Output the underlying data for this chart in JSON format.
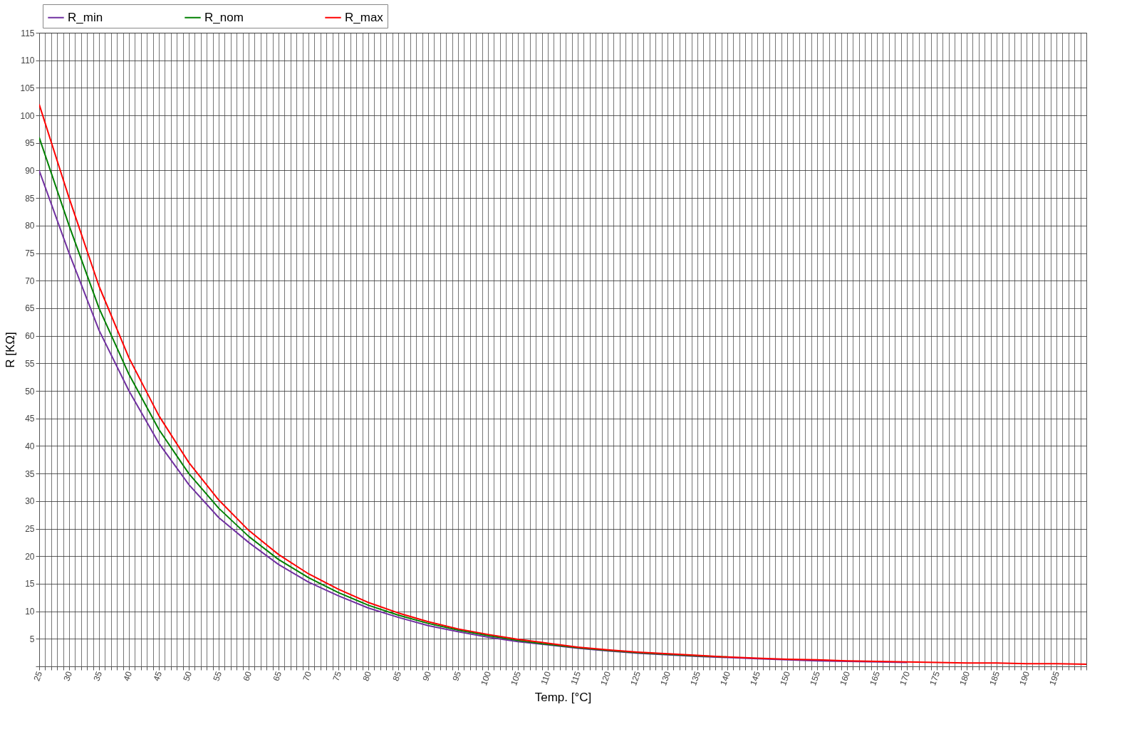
{
  "chart_data": {
    "type": "line",
    "xlabel": "Temp. [°C]",
    "ylabel": "R [KΩ]",
    "x": [
      25,
      30,
      35,
      40,
      45,
      50,
      55,
      60,
      65,
      70,
      75,
      80,
      85,
      90,
      95,
      100,
      105,
      110,
      115,
      120,
      125,
      130,
      135,
      140,
      145,
      150,
      155,
      160,
      165,
      170,
      175,
      180,
      185,
      190,
      195,
      200
    ],
    "series": [
      {
        "name": "R_min",
        "color": "#7030a0",
        "values": [
          90,
          75,
          61,
          50,
          40.5,
          33,
          27,
          22.5,
          18.5,
          15.3,
          12.8,
          10.6,
          8.9,
          7.4,
          6.3,
          5.3,
          4.5,
          3.9,
          3.3,
          2.8,
          2.4,
          2.1,
          1.8,
          1.6,
          1.4,
          1.2,
          1,
          0.9,
          0.8,
          0.7,
          null,
          null,
          null,
          null,
          null,
          null
        ]
      },
      {
        "name": "R_nom",
        "color": "#008000",
        "values": [
          96,
          80,
          65,
          53,
          43,
          35,
          28.7,
          23.6,
          19.4,
          16.1,
          13.4,
          11.1,
          9.3,
          7.8,
          6.6,
          5.6,
          4.7,
          4,
          3.4,
          2.9,
          2.5,
          2.2,
          1.9,
          1.7,
          null,
          null,
          null,
          null,
          null,
          null,
          null,
          null,
          null,
          null,
          null,
          null
        ]
      },
      {
        "name": "R_max",
        "color": "#ff0000",
        "values": [
          102,
          85,
          69,
          56,
          45.5,
          37,
          30.2,
          24.7,
          20.3,
          16.8,
          14,
          11.6,
          9.7,
          8.1,
          6.8,
          5.8,
          4.9,
          4.2,
          3.5,
          3,
          2.6,
          2.3,
          2,
          1.7,
          1.5,
          1.3,
          1.2,
          1,
          0.9,
          0.8,
          0.7,
          0.6,
          0.6,
          0.5,
          0.5,
          0.4
        ]
      }
    ],
    "xlim": [
      25,
      200
    ],
    "xticks": [
      25,
      {
        "value": 26,
        "label": null
      },
      {
        "value": 27,
        "label": null
      },
      {
        "value": 28,
        "label": null
      },
      {
        "value": 29,
        "label": null
      },
      30,
      {
        "value": 31,
        "label": null
      },
      {
        "value": 32,
        "label": null
      },
      {
        "value": 33,
        "label": null
      },
      {
        "value": 34,
        "label": null
      },
      35,
      {
        "value": 36,
        "label": null
      },
      {
        "value": 37,
        "label": null
      },
      {
        "value": 38,
        "label": null
      },
      {
        "value": 39,
        "label": null
      },
      40,
      {
        "value": 41,
        "label": null
      },
      {
        "value": 42,
        "label": null
      },
      {
        "value": 43,
        "label": null
      },
      {
        "value": 44,
        "label": null
      },
      45,
      {
        "value": 46,
        "label": null
      },
      {
        "value": 47,
        "label": null
      },
      {
        "value": 48,
        "label": null
      },
      {
        "value": 49,
        "label": null
      },
      50,
      {
        "value": 51,
        "label": null
      },
      {
        "value": 52,
        "label": null
      },
      {
        "value": 53,
        "label": null
      },
      {
        "value": 54,
        "label": null
      },
      55,
      {
        "value": 56,
        "label": null
      },
      {
        "value": 57,
        "label": null
      },
      {
        "value": 58,
        "label": null
      },
      {
        "value": 59,
        "label": null
      },
      60,
      {
        "value": 61,
        "label": null
      },
      {
        "value": 62,
        "label": null
      },
      {
        "value": 63,
        "label": null
      },
      {
        "value": 64,
        "label": null
      },
      65,
      {
        "value": 66,
        "label": null
      },
      {
        "value": 67,
        "label": null
      },
      {
        "value": 68,
        "label": null
      },
      {
        "value": 69,
        "label": null
      },
      70,
      {
        "value": 71,
        "label": null
      },
      {
        "value": 72,
        "label": null
      },
      {
        "value": 73,
        "label": null
      },
      {
        "value": 74,
        "label": null
      },
      75,
      {
        "value": 76,
        "label": null
      },
      {
        "value": 77,
        "label": null
      },
      {
        "value": 78,
        "label": null
      },
      {
        "value": 79,
        "label": null
      },
      80,
      {
        "value": 81,
        "label": null
      },
      {
        "value": 82,
        "label": null
      },
      {
        "value": 83,
        "label": null
      },
      {
        "value": 84,
        "label": null
      },
      85,
      {
        "value": 86,
        "label": null
      },
      {
        "value": 87,
        "label": null
      },
      {
        "value": 88,
        "label": null
      },
      {
        "value": 89,
        "label": null
      },
      90,
      {
        "value": 91,
        "label": null
      },
      {
        "value": 92,
        "label": null
      },
      {
        "value": 93,
        "label": null
      },
      {
        "value": 94,
        "label": null
      },
      95,
      {
        "value": 96,
        "label": null
      },
      {
        "value": 97,
        "label": null
      },
      {
        "value": 98,
        "label": null
      },
      {
        "value": 99,
        "label": null
      },
      100,
      {
        "value": 101,
        "label": null
      },
      {
        "value": 102,
        "label": null
      },
      {
        "value": 103,
        "label": null
      },
      {
        "value": 104,
        "label": null
      },
      105,
      {
        "value": 106,
        "label": null
      },
      {
        "value": 107,
        "label": null
      },
      {
        "value": 108,
        "label": null
      },
      {
        "value": 109,
        "label": null
      },
      110,
      {
        "value": 111,
        "label": null
      },
      {
        "value": 112,
        "label": null
      },
      {
        "value": 113,
        "label": null
      },
      {
        "value": 114,
        "label": null
      },
      115,
      {
        "value": 116,
        "label": null
      },
      {
        "value": 117,
        "label": null
      },
      {
        "value": 118,
        "label": null
      },
      {
        "value": 119,
        "label": null
      },
      120,
      {
        "value": 121,
        "label": null
      },
      {
        "value": 122,
        "label": null
      },
      {
        "value": 123,
        "label": null
      },
      {
        "value": 124,
        "label": null
      },
      125,
      {
        "value": 126,
        "label": null
      },
      {
        "value": 127,
        "label": null
      },
      {
        "value": 128,
        "label": null
      },
      {
        "value": 129,
        "label": null
      },
      130,
      {
        "value": 131,
        "label": null
      },
      {
        "value": 132,
        "label": null
      },
      {
        "value": 133,
        "label": null
      },
      {
        "value": 134,
        "label": null
      },
      135,
      {
        "value": 136,
        "label": null
      },
      {
        "value": 137,
        "label": null
      },
      {
        "value": 138,
        "label": null
      },
      {
        "value": 139,
        "label": null
      },
      140,
      {
        "value": 141,
        "label": null
      },
      {
        "value": 142,
        "label": null
      },
      {
        "value": 143,
        "label": null
      },
      {
        "value": 144,
        "label": null
      },
      145,
      {
        "value": 146,
        "label": null
      },
      {
        "value": 147,
        "label": null
      },
      {
        "value": 148,
        "label": null
      },
      {
        "value": 149,
        "label": null
      },
      150,
      {
        "value": 151,
        "label": null
      },
      {
        "value": 152,
        "label": null
      },
      {
        "value": 153,
        "label": null
      },
      {
        "value": 154,
        "label": null
      },
      155,
      {
        "value": 156,
        "label": null
      },
      {
        "value": 157,
        "label": null
      },
      {
        "value": 158,
        "label": null
      },
      {
        "value": 159,
        "label": null
      },
      160,
      {
        "value": 161,
        "label": null
      },
      {
        "value": 162,
        "label": null
      },
      {
        "value": 163,
        "label": null
      },
      {
        "value": 164,
        "label": null
      },
      165,
      {
        "value": 166,
        "label": null
      },
      {
        "value": 167,
        "label": null
      },
      {
        "value": 168,
        "label": null
      },
      {
        "value": 169,
        "label": null
      },
      170,
      {
        "value": 171,
        "label": null
      },
      {
        "value": 172,
        "label": null
      },
      {
        "value": 173,
        "label": null
      },
      {
        "value": 174,
        "label": null
      },
      175,
      {
        "value": 176,
        "label": null
      },
      {
        "value": 177,
        "label": null
      },
      {
        "value": 178,
        "label": null
      },
      {
        "value": 179,
        "label": null
      },
      180,
      {
        "value": 181,
        "label": null
      },
      {
        "value": 182,
        "label": null
      },
      {
        "value": 183,
        "label": null
      },
      {
        "value": 184,
        "label": null
      },
      185,
      {
        "value": 186,
        "label": null
      },
      {
        "value": 187,
        "label": null
      },
      {
        "value": 188,
        "label": null
      },
      {
        "value": 189,
        "label": null
      },
      190,
      {
        "value": 191,
        "label": null
      },
      {
        "value": 192,
        "label": null
      },
      {
        "value": 193,
        "label": null
      },
      {
        "value": 194,
        "label": null
      },
      195,
      {
        "value": 196,
        "label": null
      },
      {
        "value": 197,
        "label": null
      },
      {
        "value": 198,
        "label": null
      },
      {
        "value": 199,
        "label": null
      },
      {
        "value": 200,
        "label": null
      }
    ],
    "ylim": [
      0,
      115
    ],
    "yticks": [
      {
        "value": 0,
        "label": null
      },
      5,
      10,
      15,
      20,
      25,
      30,
      35,
      40,
      45,
      50,
      55,
      60,
      65,
      70,
      75,
      80,
      85,
      90,
      95,
      100,
      105,
      110,
      115
    ],
    "grid": true,
    "legend": "top left",
    "marker": "none",
    "line_style": "solid"
  }
}
